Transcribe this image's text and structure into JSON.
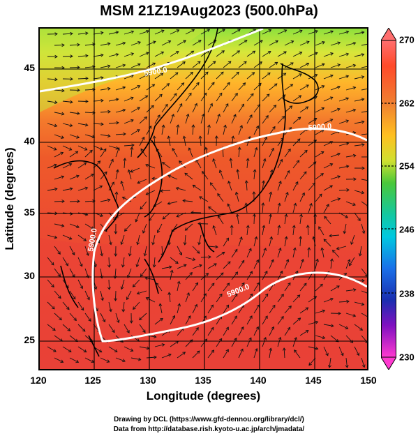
{
  "title": "MSM 21Z19Aug2023 (500.0hPa)",
  "x_axis": {
    "label": "Longitude (degrees)",
    "ticks": [
      "120",
      "125",
      "130",
      "135",
      "140",
      "145",
      "150"
    ]
  },
  "y_axis": {
    "label": "Latitude  (degrees)",
    "ticks": [
      "45",
      "40",
      "35",
      "30",
      "25"
    ]
  },
  "colorbar": {
    "ticks": [
      "270",
      "262",
      "254",
      "246",
      "238",
      "230"
    ],
    "colors": [
      "#ff5a50",
      "#f07c30",
      "#ffbf20",
      "#c6e23a",
      "#3cc84a",
      "#00c8c8",
      "#1a6ee6",
      "#1a2eb0",
      "#8a10c0",
      "#e020e0"
    ]
  },
  "contours": [
    {
      "label": "5900.0"
    },
    {
      "label": "5900.0"
    },
    {
      "label": "5900.0"
    },
    {
      "label": "5900.0"
    }
  ],
  "credits": [
    "Drawing by DCL (https://www.gfd-dennou.org/library/dcl/)",
    "Data from http://database.rish.kyoto-u.ac.jp/arch/jmadata/"
  ]
}
